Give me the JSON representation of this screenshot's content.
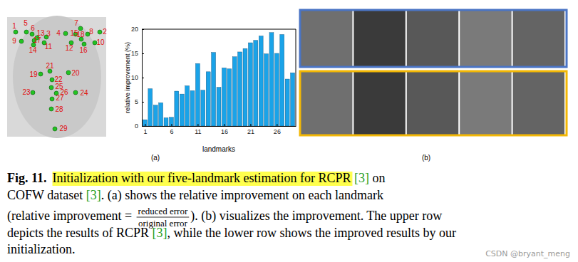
{
  "face_diagram": {
    "landmark_labels": [
      "1",
      "2",
      "3",
      "4",
      "5",
      "6",
      "7",
      "8",
      "9",
      "10",
      "11",
      "12",
      "13",
      "14",
      "15",
      "16",
      "17",
      "18",
      "19",
      "20",
      "21",
      "22",
      "23",
      "24",
      "25",
      "26",
      "27",
      "28",
      "29"
    ]
  },
  "chart_data": {
    "type": "bar",
    "x": [
      1,
      2,
      3,
      4,
      5,
      6,
      7,
      8,
      9,
      10,
      11,
      12,
      13,
      14,
      15,
      16,
      17,
      18,
      19,
      20,
      21,
      22,
      23,
      24,
      25,
      26,
      27,
      28,
      29
    ],
    "values": [
      1.3,
      7.7,
      4.3,
      4.8,
      1.7,
      1.8,
      7.2,
      6.6,
      8.3,
      7.3,
      12.9,
      7.4,
      11.2,
      15.2,
      8.0,
      12.0,
      11.8,
      14.3,
      15.3,
      16.0,
      17.2,
      17.7,
      18.6,
      14.9,
      19.3,
      15.0,
      18.9,
      9.7,
      11.0
    ],
    "color": "#1aa3e8",
    "xlim": [
      0.4,
      29.6
    ],
    "xticks": [
      1,
      6,
      11,
      16,
      21,
      26
    ],
    "ylim": [
      0,
      20
    ],
    "yticks": [
      0,
      5,
      10,
      15,
      20
    ],
    "x_label": "landmarks",
    "y_label": "relative improvement (%)",
    "grid": false
  },
  "panel_labels": {
    "a": "(a)",
    "b": "(b)"
  },
  "caption": {
    "label": "Fig. 11.",
    "highlight": "Initialization with our five-landmark estimation for RCPR",
    "line1_rest": " [3] on",
    "line2": "COFW dataset [3]. (a) shows the relative improvement on each landmark",
    "line3_before": "(relative improvement = ",
    "fraction": {
      "numerator": "reduced error",
      "denominator": "original error"
    },
    "line3_after": "). (b) visualizes the improvement. The upper row",
    "line4": "depicts the results of RCPR [3], while the lower row shows the improved results by our",
    "line5": "initialization."
  },
  "watermark": "CSDN @bryant_meng"
}
